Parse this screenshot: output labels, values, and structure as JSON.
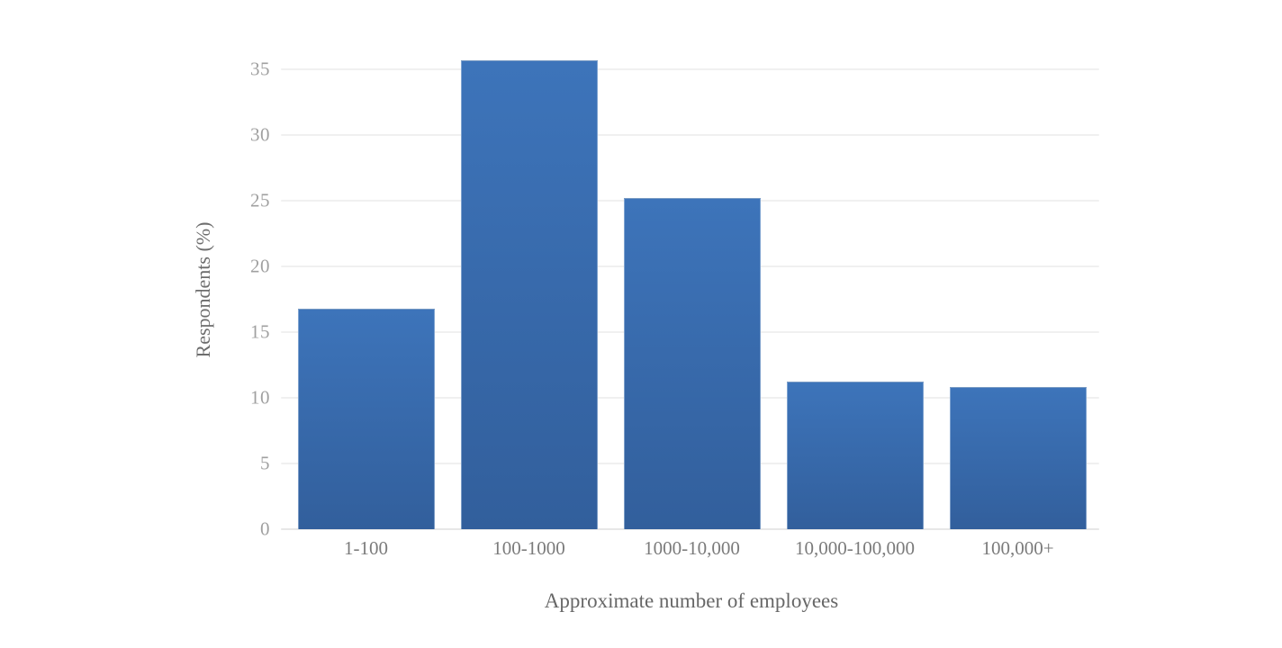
{
  "page": {
    "background": "#ffffff"
  },
  "chart_data": {
    "type": "bar",
    "title": "",
    "xlabel": "Approximate number of employees",
    "ylabel": "Respondents (%)",
    "categories": [
      "1-100",
      "100-1000",
      "1000-10,000",
      "10,000-100,000",
      "100,000+"
    ],
    "values": [
      16.8,
      35.7,
      25.2,
      11.2,
      10.8
    ],
    "yticks": [
      0,
      5,
      10,
      15,
      20,
      25,
      30,
      35
    ],
    "ylim": [
      0,
      36.5
    ],
    "grid": "horizontal",
    "legend_position": "none",
    "colors": {
      "bar_top": "#3d74ba",
      "bar_bottom": "#325f9c",
      "bar_edge": "#b6cce6",
      "gridline": "#f0f0f0",
      "zero_line": "#e7e7e7",
      "tick_label": "#a0a0a0",
      "category_label": "#7b7b7b",
      "axis_title": "#676767"
    }
  }
}
